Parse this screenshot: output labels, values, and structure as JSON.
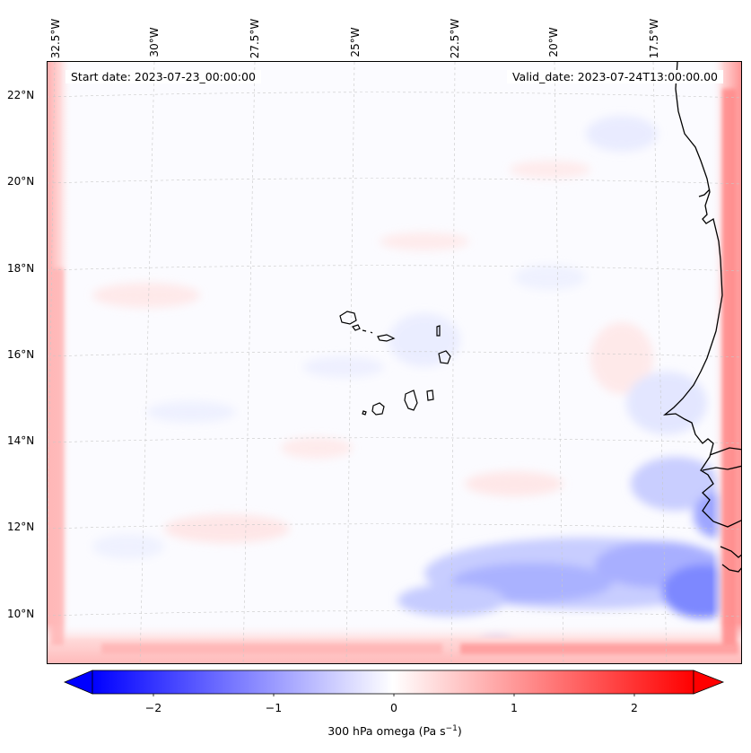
{
  "header": {
    "start_date": "Start date: 2023-07-23_00:00:00",
    "valid_date": "Valid_date: 2023-07-24T13:00:00.00"
  },
  "map": {
    "lon_ticks": [
      "32.5°W",
      "30°W",
      "27.5°W",
      "25°W",
      "22.5°W",
      "20°W",
      "17.5°W"
    ],
    "lat_ticks": [
      "22°N",
      "20°N",
      "18°N",
      "16°N",
      "14°N",
      "12°N",
      "10°N"
    ],
    "lon_range": [
      -33.2,
      -15.6
    ],
    "lat_range": [
      8.8,
      22.8
    ],
    "gridlines": true,
    "coastline_color": "#000000",
    "field": "300 hPa omega"
  },
  "colorbar": {
    "ticks": [
      "−2",
      "−1",
      "0",
      "1",
      "2"
    ],
    "range": [
      -2.5,
      2.5
    ],
    "colormap": "bwr",
    "extend": "both",
    "label_main": "300 hPa omega (Pa s",
    "label_sup": "−1",
    "label_end": ")",
    "color_low": "#0000ff",
    "color_mid": "#ffffff",
    "color_high": "#ff0000"
  }
}
